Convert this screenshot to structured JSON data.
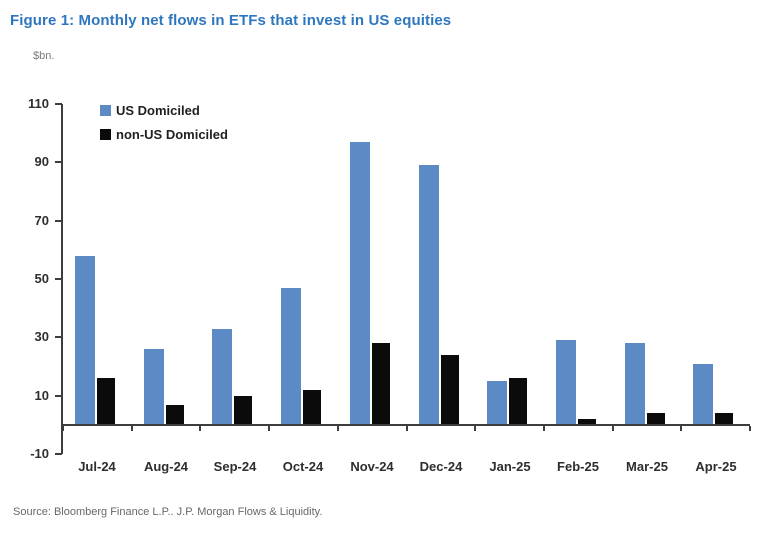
{
  "title": "Figure 1: Monthly net flows in ETFs that invest in US equities",
  "units_label": "$bn.",
  "source": "Source: Bloomberg Finance L.P.. J.P. Morgan Flows & Liquidity.",
  "colors": {
    "title": "#2e77c0",
    "us_bar": "#5b8ac5",
    "non_us_bar": "#0b0b0b",
    "axis": "#3d3d3d",
    "tick_label": "#2e2e2e",
    "units_text": "#7a7a7a",
    "source_text": "#686868",
    "background": "#ffffff"
  },
  "chart_data": {
    "type": "bar",
    "title": "Figure 1: Monthly net flows in ETFs that invest in US equities",
    "xlabel": "",
    "ylabel": "$bn.",
    "categories": [
      "Jul-24",
      "Aug-24",
      "Sep-24",
      "Oct-24",
      "Nov-24",
      "Dec-24",
      "Jan-25",
      "Feb-25",
      "Mar-25",
      "Apr-25"
    ],
    "series": [
      {
        "name": "US Domiciled",
        "color_key": "us_bar",
        "values": [
          58,
          26,
          33,
          47,
          97,
          89,
          15,
          29,
          28,
          21
        ]
      },
      {
        "name": "non-US Domiciled",
        "color_key": "non_us_bar",
        "values": [
          16,
          7,
          10,
          12,
          28,
          24,
          16,
          2,
          4,
          4
        ]
      }
    ],
    "ylim": [
      -10,
      110
    ],
    "ytick_step": 20,
    "grid": false,
    "legend_position": "top-left-inside"
  }
}
